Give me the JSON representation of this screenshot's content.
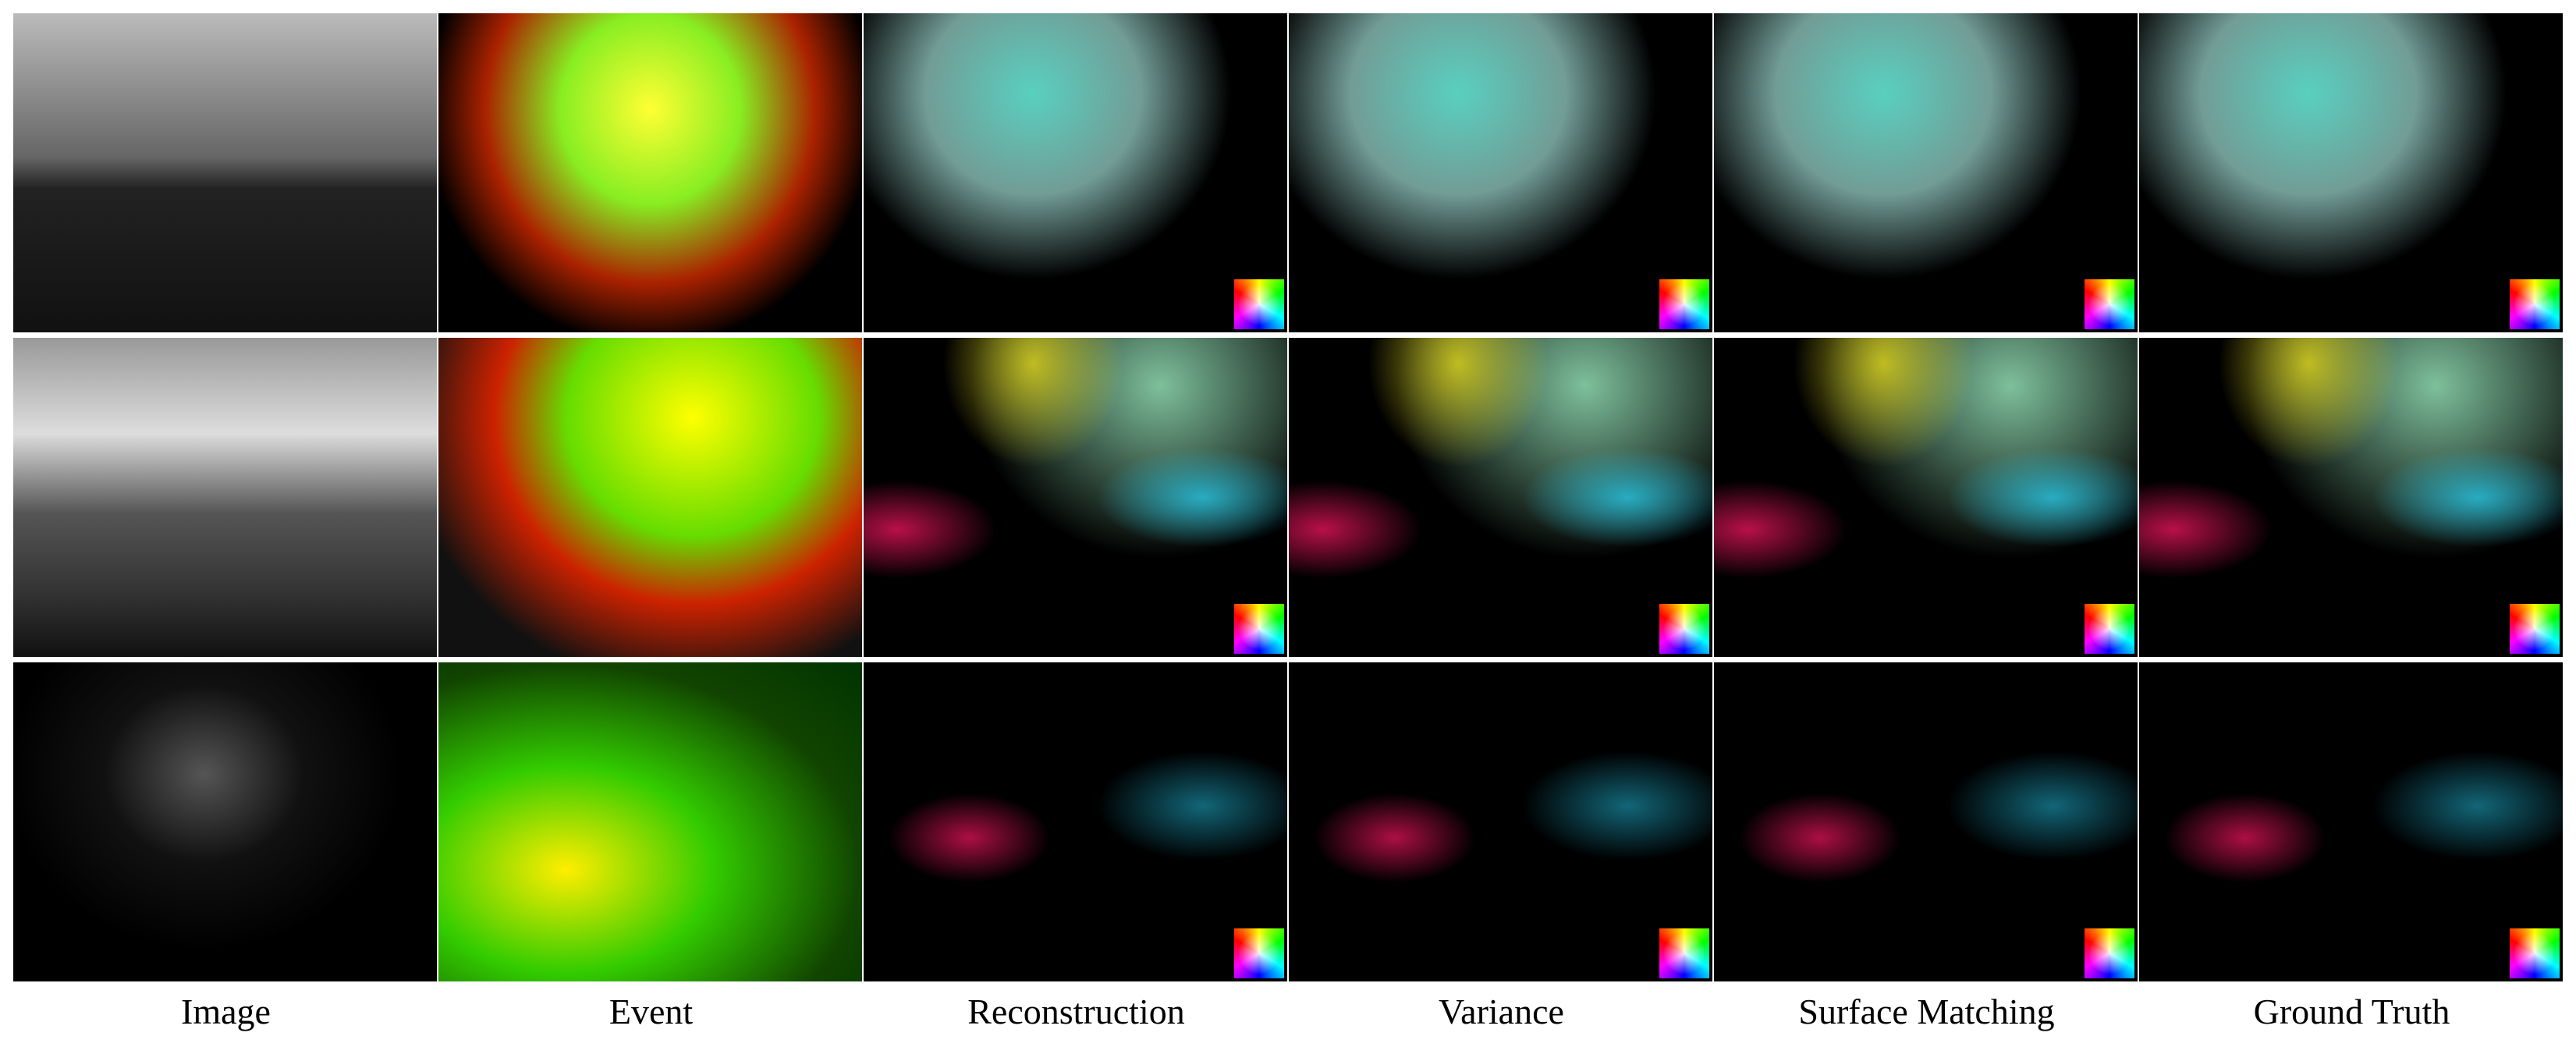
{
  "columns": [
    "Image",
    "Event",
    "Reconstruction",
    "Variance",
    "Surface Matching",
    "Ground Truth"
  ]
}
